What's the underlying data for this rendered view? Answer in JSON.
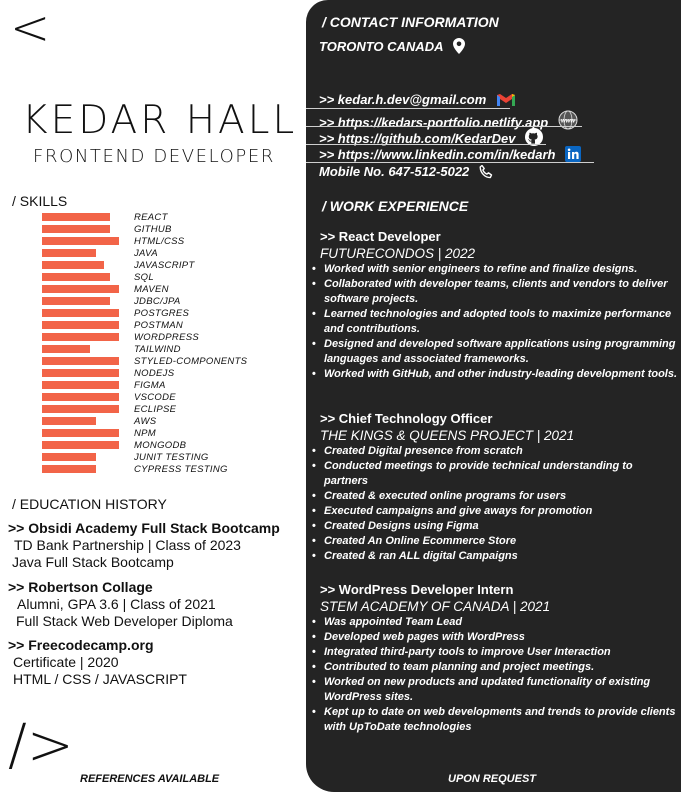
{
  "header": {
    "open_tag": "<",
    "name": "KEDAR HALL",
    "role": "FRONTEND DEVELOPER"
  },
  "skills": {
    "heading": "/ SKILLS",
    "accent_color": "#f26448",
    "items": [
      {
        "label": "REACT",
        "level": 0.88
      },
      {
        "label": "GITHUB",
        "level": 0.88
      },
      {
        "label": "HTML/CSS",
        "level": 1.0
      },
      {
        "label": "JAVA",
        "level": 0.7
      },
      {
        "label": "JAVASCRIPT",
        "level": 0.8
      },
      {
        "label": "SQL",
        "level": 0.88
      },
      {
        "label": "MAVEN",
        "level": 1.0
      },
      {
        "label": "JDBC/JPA",
        "level": 0.88
      },
      {
        "label": "POSTGRES",
        "level": 1.0
      },
      {
        "label": "POSTMAN",
        "level": 1.0
      },
      {
        "label": "WORDPRESS",
        "level": 1.0
      },
      {
        "label": "TAILWIND",
        "level": 0.62
      },
      {
        "label": "STYLED-COMPONENTS",
        "level": 1.0
      },
      {
        "label": "NODEJS",
        "level": 1.0
      },
      {
        "label": "FIGMA",
        "level": 1.0
      },
      {
        "label": "VSCODE",
        "level": 1.0
      },
      {
        "label": "ECLIPSE",
        "level": 1.0
      },
      {
        "label": "AWS",
        "level": 0.7
      },
      {
        "label": "NPM",
        "level": 1.0
      },
      {
        "label": "MONGODB",
        "level": 1.0
      },
      {
        "label": "JUNIT TESTING",
        "level": 0.7
      },
      {
        "label": "CYPRESS TESTING",
        "level": 0.7
      }
    ]
  },
  "education": {
    "heading": "/ EDUCATION HISTORY",
    "entries": [
      {
        "title": ">> Obsidi Academy Full Stack Bootcamp",
        "line1": "TD Bank Partnership | Class of 2023",
        "line2": "Java Full Stack Bootcamp"
      },
      {
        "title": ">> Robertson Collage",
        "line1": "Alumni, GPA 3.6 | Class of 2021",
        "line2": "Full Stack Web Developer Diploma"
      },
      {
        "title": ">> Freecodecamp.org",
        "line1": "Certificate | 2020",
        "line2": "HTML / CSS / JAVASCRIPT"
      }
    ]
  },
  "footer": {
    "close_tag": "/>",
    "left": "REFERENCES AVAILABLE",
    "right": "UPON REQUEST"
  },
  "contact": {
    "heading": "/ CONTACT INFORMATION",
    "location": "TORONTO CANADA",
    "email": ">> kedar.h.dev@gmail.com",
    "portfolio": ">> https://kedars-portfolio.netlify.app",
    "github": ">> https://github.com/KedarDev",
    "linkedin": ">> https://www.linkedin.com/in/kedarh",
    "mobile": "Mobile No. 647-512-5022"
  },
  "experience": {
    "heading": "/ WORK EXPERIENCE",
    "jobs": [
      {
        "title": ">> React Developer",
        "org": "FUTURECONDOS | 2022",
        "bullets": [
          "Worked with senior engineers  to refine and finalize designs.",
          "Collaborated with developer teams, clients and vendors to deliver software projects.",
          "Learned technologies and adopted tools to maximize performance and contributions.",
          "Designed and developed software applications using programming languages and associated frameworks.",
          "Worked with GitHub, and other industry-leading development tools."
        ]
      },
      {
        "title": ">> Chief Technology Officer",
        "org": "THE KINGS & QUEENS PROJECT | 2021",
        "bullets": [
          "Created Digital presence from scratch",
          "Conducted meetings to provide technical understanding to partners",
          "Created & executed online programs for users",
          "Executed campaigns and give aways for promotion",
          "Created Designs using Figma",
          "Created An Online Ecommerce Store",
          "Created & ran ALL digital Campaigns"
        ]
      },
      {
        "title": ">> WordPress Developer Intern",
        "org": "STEM ACADEMY OF CANADA | 2021",
        "bullets": [
          "Was appointed Team Lead",
          "Developed web pages with WordPress",
          "Integrated third-party tools to improve User Interaction",
          "Contributed to team planning and project meetings.",
          "Worked on new products and updated functionality of existing WordPress sites.",
          "Kept up to date on web developments and trends to provide clients with UpToDate  technologies"
        ]
      }
    ]
  }
}
